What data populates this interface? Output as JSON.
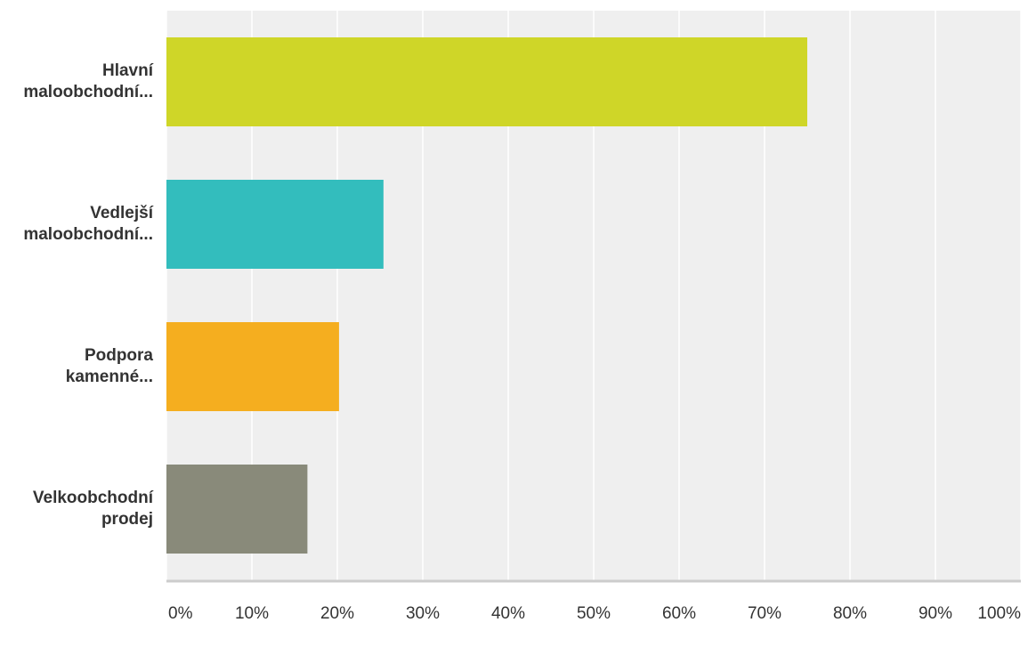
{
  "chart_data": {
    "type": "hbar",
    "categories": [
      "Hlavní maloobchodní...",
      "Vedlejší maloobchodní...",
      "Podpora kamenné...",
      "Velkoobchodní prodej"
    ],
    "values": [
      75,
      25.4,
      20.2,
      16.5
    ],
    "colors": [
      "#cfd628",
      "#33bdbd",
      "#f5ae1f",
      "#898a7a"
    ],
    "xlim": [
      0,
      100
    ],
    "xticks": [
      {
        "value": 0,
        "label": "0%"
      },
      {
        "value": 10,
        "label": "10%"
      },
      {
        "value": 20,
        "label": "20%"
      },
      {
        "value": 30,
        "label": "30%"
      },
      {
        "value": 40,
        "label": "40%"
      },
      {
        "value": 50,
        "label": "50%"
      },
      {
        "value": 60,
        "label": "60%"
      },
      {
        "value": 70,
        "label": "70%"
      },
      {
        "value": 80,
        "label": "80%"
      },
      {
        "value": 90,
        "label": "90%"
      },
      {
        "value": 100,
        "label": "100%"
      }
    ],
    "grid": true
  }
}
